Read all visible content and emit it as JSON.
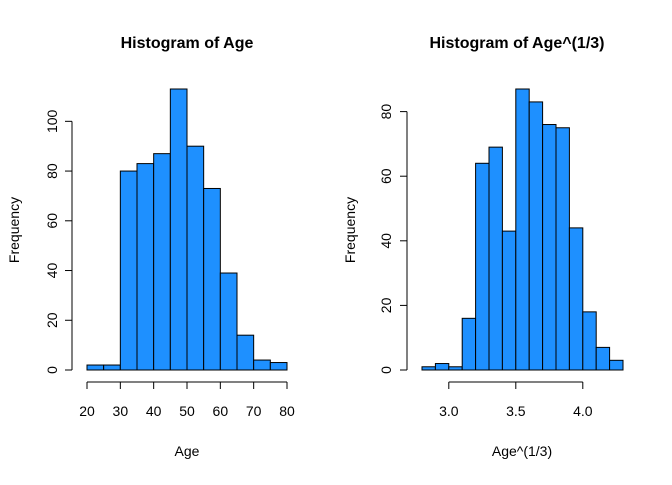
{
  "chart_data": [
    {
      "type": "bar",
      "title": "Histogram of Age",
      "xlabel": "Age",
      "ylabel": "Frequency",
      "bin_edges": [
        20,
        25,
        30,
        35,
        40,
        45,
        50,
        55,
        60,
        65,
        70,
        75,
        80
      ],
      "values": [
        2,
        2,
        80,
        83,
        87,
        113,
        90,
        73,
        39,
        14,
        4,
        3
      ],
      "xticks": [
        20,
        30,
        40,
        50,
        60,
        70,
        80
      ],
      "yticks": [
        0,
        20,
        40,
        60,
        80,
        100
      ],
      "xlim": [
        20,
        80
      ],
      "ylim": [
        0,
        113
      ],
      "bar_color": "#1E90FF",
      "grid": false
    },
    {
      "type": "bar",
      "title": "Histogram of Age^(1/3)",
      "xlabel": "Age^(1/3)",
      "ylabel": "Frequency",
      "bin_edges": [
        2.8,
        2.9,
        3.0,
        3.1,
        3.2,
        3.3,
        3.4,
        3.5,
        3.6,
        3.7,
        3.8,
        3.9,
        4.0,
        4.1,
        4.2,
        4.3
      ],
      "values": [
        1,
        2,
        1,
        16,
        64,
        69,
        43,
        87,
        83,
        76,
        75,
        44,
        18,
        7,
        3
      ],
      "xticks": [
        3.0,
        3.5,
        4.0
      ],
      "xtick_labels": [
        "3.0",
        "3.5",
        "4.0"
      ],
      "yticks": [
        0,
        20,
        40,
        60,
        80
      ],
      "xlim": [
        2.8,
        4.3
      ],
      "ylim": [
        0,
        87
      ],
      "bar_color": "#1E90FF",
      "grid": false
    }
  ]
}
